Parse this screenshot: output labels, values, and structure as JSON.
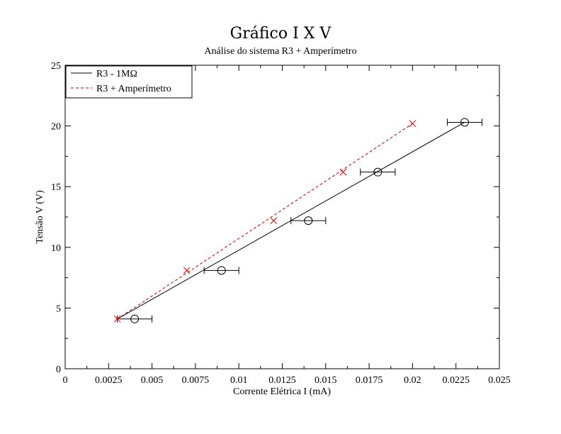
{
  "chart_data": {
    "type": "line",
    "title": "Gráfico I X V",
    "subtitle": "Análise do sistema R3 + Amperímetro",
    "xlabel": "Corrente Elétrica I  (mA)",
    "ylabel": "Tensão V (V)",
    "xlim": [
      0,
      0.025
    ],
    "ylim": [
      0,
      25
    ],
    "x_ticks": [
      0,
      0.0025,
      0.005,
      0.0075,
      0.01,
      0.0125,
      0.015,
      0.0175,
      0.02,
      0.0225,
      0.025
    ],
    "x_tick_labels": [
      "0",
      "0.0025",
      "0.005",
      "0.0075",
      "0.01",
      "0.0125",
      "0.015",
      "0.0175",
      "0.02",
      "0.0225",
      "0.025"
    ],
    "y_ticks": [
      0,
      5,
      10,
      15,
      20,
      25
    ],
    "y_tick_labels": [
      "0",
      "5",
      "10",
      "15",
      "20",
      "25"
    ],
    "grid": false,
    "legend_position": "top-left",
    "series": [
      {
        "name": "R3 - 1MΩ",
        "color": "#000000",
        "line_style": "solid",
        "marker": "circle",
        "x": [
          0.004,
          0.009,
          0.014,
          0.018,
          0.023
        ],
        "y": [
          4.1,
          8.1,
          12.2,
          16.2,
          20.3
        ],
        "x_error": 0.001,
        "fit_line": {
          "x": [
            0.003,
            0.023
          ],
          "y": [
            4.1,
            20.3
          ]
        }
      },
      {
        "name": "R3 + Amperímetro",
        "color": "#cc0000",
        "line_style": "dashed",
        "marker": "x",
        "x": [
          0.003,
          0.007,
          0.012,
          0.016,
          0.02
        ],
        "y": [
          4.1,
          8.1,
          12.2,
          16.2,
          20.2
        ],
        "fit_line": {
          "x": [
            0.003,
            0.02
          ],
          "y": [
            4.1,
            20.2
          ]
        }
      }
    ]
  }
}
